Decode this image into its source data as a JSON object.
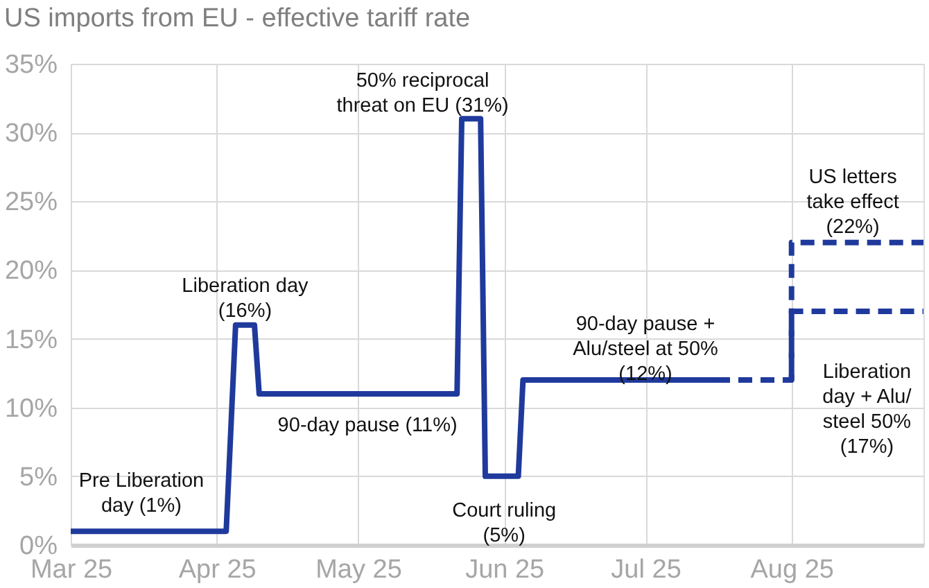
{
  "chart_data": {
    "type": "line",
    "title": "US imports from EU - effective tariff rate",
    "series": [
      {
        "color": "#1f3a9c",
        "line_style": "solid",
        "x": [
          "2025-03-01",
          "2025-04-03",
          "2025-04-05",
          "2025-04-09",
          "2025-04-10",
          "2025-05-22",
          "2025-05-23",
          "2025-05-27",
          "2025-05-28",
          "2025-06-04",
          "2025-06-05",
          "2025-07-16"
        ],
        "values": [
          1,
          1,
          16,
          16,
          11,
          11,
          31,
          31,
          5,
          5,
          12,
          12
        ]
      },
      {
        "color": "#1f3a9c",
        "line_style": "dashed",
        "x": [
          "2025-07-16",
          "2025-08-01",
          "2025-08-01",
          "2025-08-29"
        ],
        "values": [
          12,
          12,
          22,
          22
        ]
      },
      {
        "color": "#1f3a9c",
        "line_style": "dashed",
        "x": [
          "2025-08-01",
          "2025-08-01",
          "2025-08-29"
        ],
        "values": [
          12,
          17,
          17
        ]
      }
    ],
    "xlim": [
      "2025-03-01",
      "2025-08-29"
    ],
    "xticks": [
      {
        "value": "2025-03-01",
        "label": "Mar 25"
      },
      {
        "value": "2025-04-01",
        "label": "Apr 25"
      },
      {
        "value": "2025-05-01",
        "label": "May 25"
      },
      {
        "value": "2025-06-01",
        "label": "Jun 25"
      },
      {
        "value": "2025-07-01",
        "label": "Jul 25"
      },
      {
        "value": "2025-08-01",
        "label": "Aug 25"
      }
    ],
    "ylim": [
      0,
      35
    ],
    "yticks": [
      {
        "value": 0,
        "label": "0%"
      },
      {
        "value": 5,
        "label": "5%"
      },
      {
        "value": 10,
        "label": "10%"
      },
      {
        "value": 15,
        "label": "15%"
      },
      {
        "value": 20,
        "label": "20%"
      },
      {
        "value": 25,
        "label": "25%"
      },
      {
        "value": 30,
        "label": "30%"
      },
      {
        "value": 35,
        "label": "35%"
      }
    ],
    "grid": true,
    "annotations": [
      {
        "text": "Pre Liberation\nday (1%)",
        "x": "2025-03-16",
        "y": 1
      },
      {
        "text": "Liberation day\n(16%)",
        "x": "2025-04-07",
        "y": 16
      },
      {
        "text": "50% reciprocal\nthreat on EU (31%)",
        "x": "2025-05-25",
        "y": 31
      },
      {
        "text": "90-day pause (11%)",
        "x": "2025-05-03",
        "y": 11
      },
      {
        "text": "Court ruling\n(5%)",
        "x": "2025-06-01",
        "y": 5
      },
      {
        "text": "90-day pause +\nAlu/steel at 50%\n(12%)",
        "x": "2025-07-01",
        "y": 12
      },
      {
        "text": "US letters\ntake effect\n(22%)",
        "x": "2025-08-14",
        "y": 22
      },
      {
        "text": "Liberation\nday + Alu/\nsteel 50%\n(17%)",
        "x": "2025-08-17",
        "y": 17
      }
    ]
  }
}
